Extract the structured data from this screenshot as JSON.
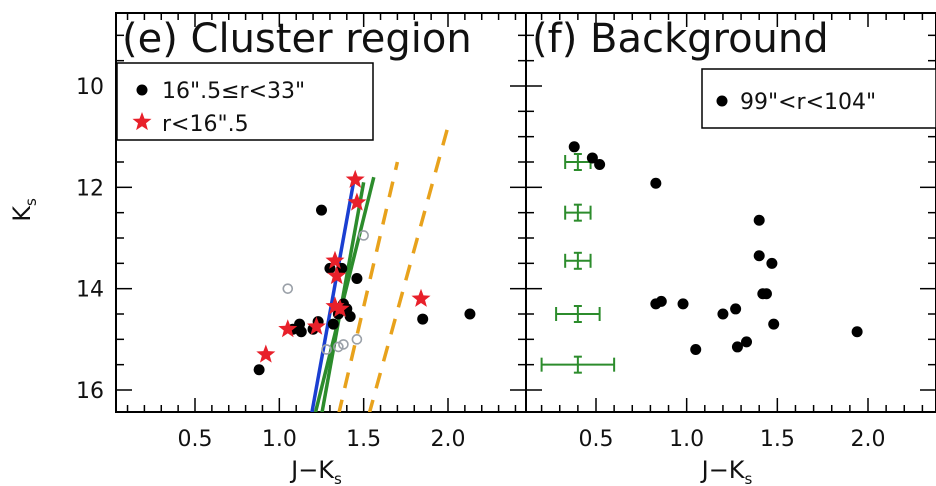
{
  "chart_data": [
    {
      "type": "scatter",
      "panel_label": "(e) Cluster region",
      "xlabel": "J−K",
      "xlabel_sub": "s",
      "ylabel": "K",
      "ylabel_sub": "s",
      "xlim": [
        0.1,
        2.5
      ],
      "ylim": [
        16.5,
        9.0
      ],
      "y_inverted": true,
      "xticks": [
        "0.5",
        "1.0",
        "1.5",
        "2.0"
      ],
      "yticks": [
        "10",
        "12",
        "14",
        "16"
      ],
      "legend_position": "top-left",
      "series": [
        {
          "name": "16\".5≤r<33\"",
          "marker": "filled-circle",
          "color": "#000000",
          "points": [
            [
              0.88,
              15.6
            ],
            [
              1.08,
              14.8
            ],
            [
              1.12,
              14.7
            ],
            [
              1.13,
              14.85
            ],
            [
              1.2,
              14.8
            ],
            [
              1.23,
              14.65
            ],
            [
              1.25,
              12.45
            ],
            [
              1.3,
              13.6
            ],
            [
              1.32,
              14.7
            ],
            [
              1.35,
              14.5
            ],
            [
              1.37,
              13.6
            ],
            [
              1.38,
              14.3
            ],
            [
              1.4,
              14.4
            ],
            [
              1.42,
              14.55
            ],
            [
              1.46,
              13.8
            ],
            [
              1.85,
              14.6
            ],
            [
              2.13,
              14.5
            ]
          ]
        },
        {
          "name": "r<16\".5",
          "marker": "star",
          "color": "#e8202a",
          "points": [
            [
              0.92,
              15.3
            ],
            [
              1.05,
              14.8
            ],
            [
              1.22,
              14.75
            ],
            [
              1.33,
              14.35
            ],
            [
              1.33,
              13.45
            ],
            [
              1.34,
              13.75
            ],
            [
              1.36,
              14.4
            ],
            [
              1.45,
              11.85
            ],
            [
              1.46,
              12.3
            ],
            [
              1.84,
              14.2
            ]
          ]
        },
        {
          "name": "",
          "marker": "open-circle",
          "color": "#9aa0a8",
          "points": [
            [
              1.05,
              14.0
            ],
            [
              1.28,
              15.2
            ],
            [
              1.35,
              15.15
            ],
            [
              1.38,
              15.1
            ],
            [
              1.46,
              15.0
            ],
            [
              1.5,
              12.95
            ]
          ]
        }
      ],
      "lines": [
        {
          "color": "#1b3fd1",
          "style": "solid",
          "points": [
            [
              1.19,
              16.5
            ],
            [
              1.44,
              11.9
            ]
          ]
        },
        {
          "color": "#2c8c2c",
          "style": "solid",
          "points": [
            [
              1.21,
              16.5
            ],
            [
              1.56,
              11.8
            ]
          ]
        },
        {
          "color": "#2c8c2c",
          "style": "solid",
          "points": [
            [
              1.25,
              16.5
            ],
            [
              1.5,
              11.9
            ]
          ]
        },
        {
          "color": "#e8a21c",
          "style": "dashed",
          "points": [
            [
              1.35,
              16.5
            ],
            [
              1.7,
              11.5
            ]
          ]
        },
        {
          "color": "#e8a21c",
          "style": "dashed",
          "points": [
            [
              1.53,
              16.5
            ],
            [
              2.0,
              10.8
            ]
          ]
        }
      ]
    },
    {
      "type": "scatter",
      "panel_label": "(f) Background",
      "xlabel": "J−K",
      "xlabel_sub": "s",
      "xlim": [
        0.1,
        2.5
      ],
      "ylim": [
        16.5,
        9.0
      ],
      "y_inverted": true,
      "xticks": [
        "0.5",
        "1.0",
        "1.5",
        "2.0"
      ],
      "legend_position": "top-right",
      "series": [
        {
          "name": "99\"<r<104\"",
          "marker": "filled-circle",
          "color": "#000000",
          "points": [
            [
              0.38,
              11.2
            ],
            [
              0.48,
              11.42
            ],
            [
              0.52,
              11.55
            ],
            [
              0.83,
              11.92
            ],
            [
              0.83,
              14.3
            ],
            [
              0.86,
              14.25
            ],
            [
              0.98,
              14.3
            ],
            [
              1.05,
              15.2
            ],
            [
              1.2,
              14.5
            ],
            [
              1.27,
              14.4
            ],
            [
              1.28,
              15.15
            ],
            [
              1.33,
              15.05
            ],
            [
              1.4,
              12.65
            ],
            [
              1.4,
              13.35
            ],
            [
              1.42,
              14.1
            ],
            [
              1.44,
              14.1
            ],
            [
              1.47,
              13.5
            ],
            [
              1.48,
              14.7
            ],
            [
              1.94,
              14.85
            ]
          ]
        }
      ],
      "error_bars": {
        "color": "#2c8c2c",
        "items": [
          {
            "x": 0.4,
            "y": 11.5,
            "xerr": 0.07
          },
          {
            "x": 0.4,
            "y": 12.5,
            "xerr": 0.07
          },
          {
            "x": 0.4,
            "y": 13.45,
            "xerr": 0.07
          },
          {
            "x": 0.4,
            "y": 14.5,
            "xerr": 0.12
          },
          {
            "x": 0.4,
            "y": 15.5,
            "xerr": 0.2
          }
        ]
      }
    }
  ]
}
